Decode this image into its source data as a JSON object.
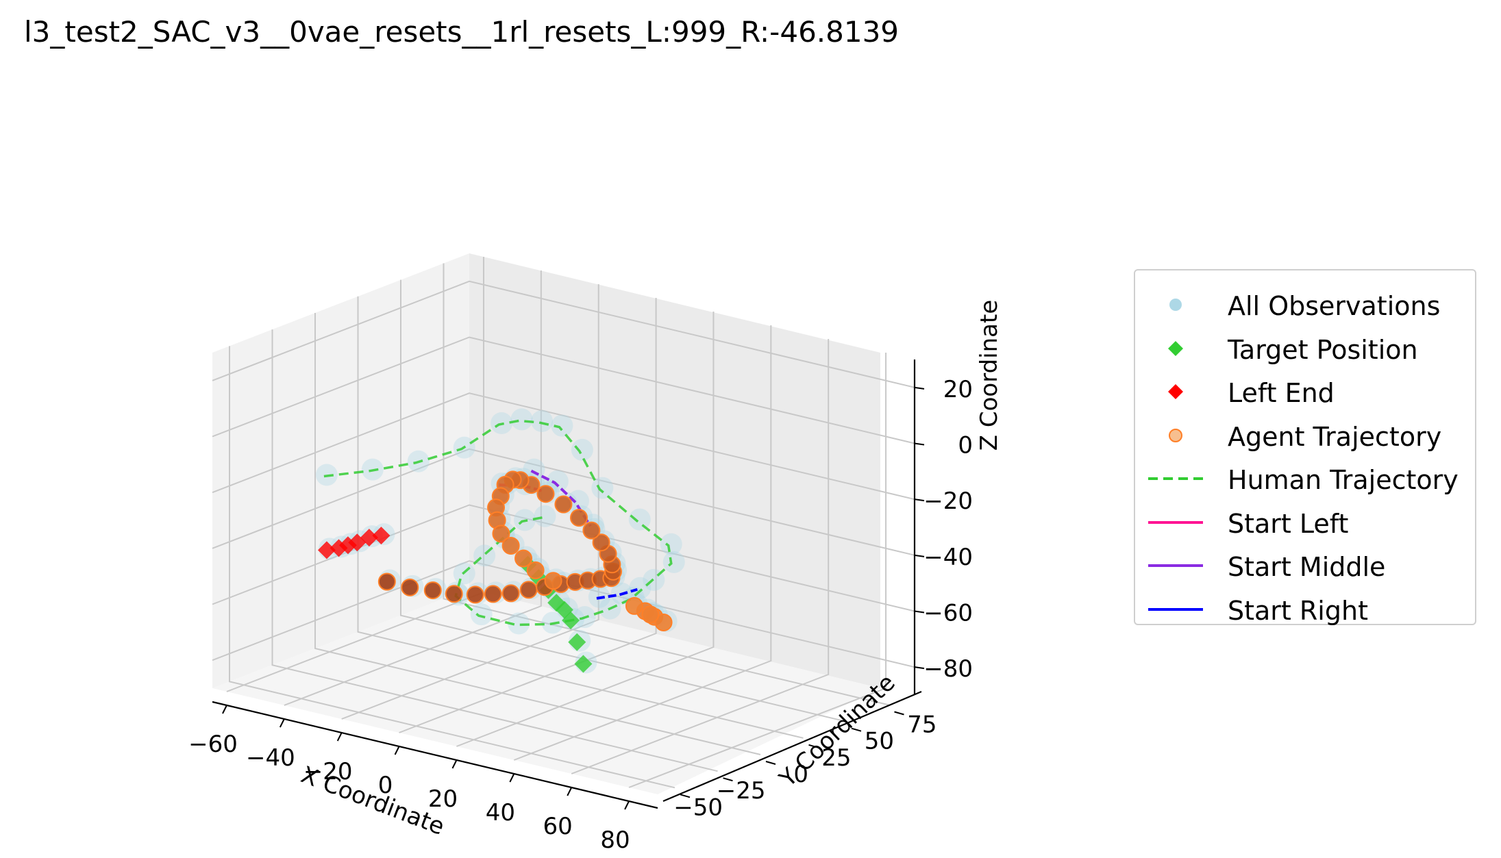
{
  "title": "l3_test2_SAC_v3__0vae_resets__1rl_resets_L:999_R:-46.8139",
  "chart_data": {
    "type": "scatter",
    "projection": "3d",
    "title": "l3_test2_SAC_v3__0vae_resets__1rl_resets_L:999_R:-46.8139",
    "xlabel": "X Coordinate",
    "ylabel": "Y Coordinate",
    "zlabel": "Z Coordinate",
    "xticks": [
      "−60",
      "−40",
      "−20",
      "0",
      "20",
      "40",
      "60",
      "80"
    ],
    "yticks": [
      "−50",
      "−25",
      "0",
      "25",
      "50",
      "75"
    ],
    "zticks": [
      "20",
      "0",
      "−20",
      "−40",
      "−60",
      "−80"
    ],
    "xlim": [
      -65,
      90
    ],
    "ylim": [
      -60,
      90
    ],
    "zlim": [
      -90,
      30
    ],
    "grid": true,
    "legend_position": "right",
    "colors": {
      "all_observations": "#add8e6",
      "target_position": "#32cd32",
      "left_end": "#ff0000",
      "agent_trajectory": "#f4a460",
      "agent_trajectory_edge": "#ff7f27",
      "human_trajectory": "#32cd32",
      "start_left": "#ff1493",
      "start_middle": "#8a2be2",
      "start_right": "#0000ff"
    },
    "legend": [
      {
        "label": "All Observations",
        "marker": "circle",
        "color": "#add8e6"
      },
      {
        "label": "Target Position",
        "marker": "diamond",
        "color": "#32cd32"
      },
      {
        "label": "Left End",
        "marker": "diamond",
        "color": "#ff0000"
      },
      {
        "label": "Agent Trajectory",
        "marker": "circle",
        "color": "#f4a460"
      },
      {
        "label": "Human Trajectory",
        "marker": "dashed-line",
        "color": "#32cd32"
      },
      {
        "label": "Start Left",
        "marker": "line",
        "color": "#ff1493"
      },
      {
        "label": "Start Middle",
        "marker": "line",
        "color": "#8a2be2"
      },
      {
        "label": "Start Right",
        "marker": "line",
        "color": "#0000ff"
      }
    ],
    "series": [
      {
        "name": "Agent Trajectory",
        "kind": "points",
        "points": [
          [
            -40,
            0,
            -60
          ],
          [
            -35,
            5,
            -62
          ],
          [
            -30,
            10,
            -63
          ],
          [
            -25,
            14,
            -64
          ],
          [
            -20,
            18,
            -64
          ],
          [
            -15,
            20,
            -63
          ],
          [
            -10,
            22,
            -62
          ],
          [
            -5,
            24,
            -60
          ],
          [
            0,
            25,
            -58
          ],
          [
            5,
            26,
            -56
          ],
          [
            10,
            26,
            -54
          ],
          [
            15,
            25,
            -52
          ],
          [
            20,
            24,
            -50
          ],
          [
            25,
            22,
            -48
          ],
          [
            28,
            18,
            -44
          ],
          [
            30,
            14,
            -40
          ],
          [
            31,
            10,
            -35
          ],
          [
            31,
            6,
            -30
          ],
          [
            30,
            2,
            -25
          ],
          [
            28,
            -2,
            -20
          ],
          [
            25,
            -6,
            -15
          ],
          [
            20,
            -8,
            -12
          ],
          [
            15,
            -8,
            -10
          ],
          [
            10,
            -6,
            -10
          ],
          [
            5,
            -2,
            -12
          ],
          [
            0,
            2,
            -16
          ],
          [
            -4,
            6,
            -22
          ],
          [
            -8,
            10,
            -28
          ],
          [
            -10,
            14,
            -34
          ],
          [
            -11,
            18,
            -40
          ],
          [
            -10,
            22,
            -45
          ],
          [
            -8,
            26,
            -50
          ],
          [
            -5,
            28,
            -54
          ],
          [
            0,
            30,
            -57
          ],
          [
            32,
            30,
            -60
          ],
          [
            34,
            32,
            -62
          ],
          [
            36,
            34,
            -64
          ],
          [
            35,
            28,
            -60
          ],
          [
            33,
            22,
            -56
          ]
        ]
      },
      {
        "name": "Human Trajectory",
        "kind": "dashed-line",
        "points": [
          [
            -50,
            -20,
            -20
          ],
          [
            -40,
            -10,
            -18
          ],
          [
            -30,
            0,
            -15
          ],
          [
            -20,
            10,
            -10
          ],
          [
            -10,
            15,
            0
          ],
          [
            0,
            10,
            5
          ],
          [
            10,
            5,
            8
          ],
          [
            20,
            0,
            10
          ],
          [
            30,
            -5,
            5
          ],
          [
            40,
            -10,
            -5
          ],
          [
            50,
            -5,
            -15
          ],
          [
            55,
            5,
            -25
          ],
          [
            50,
            15,
            -35
          ],
          [
            40,
            20,
            -45
          ],
          [
            30,
            25,
            -55
          ],
          [
            20,
            28,
            -62
          ],
          [
            10,
            30,
            -68
          ],
          [
            0,
            28,
            -72
          ],
          [
            -10,
            25,
            -74
          ],
          [
            -20,
            20,
            -72
          ],
          [
            -25,
            15,
            -65
          ],
          [
            -20,
            10,
            -55
          ],
          [
            -10,
            5,
            -45
          ],
          [
            0,
            0,
            -35
          ],
          [
            10,
            -5,
            -25
          ],
          [
            20,
            -10,
            -20
          ]
        ]
      },
      {
        "name": "Target Position",
        "kind": "diamonds",
        "points": [
          [
            12,
            -5,
            -40
          ],
          [
            14,
            -2,
            -45
          ],
          [
            15,
            2,
            -50
          ],
          [
            16,
            5,
            -55
          ],
          [
            17,
            8,
            -58
          ],
          [
            18,
            10,
            -62
          ],
          [
            19,
            12,
            -70
          ],
          [
            20,
            14,
            -78
          ]
        ]
      },
      {
        "name": "Left End",
        "kind": "diamonds",
        "points": [
          [
            -55,
            -10,
            -50
          ],
          [
            -52,
            -8,
            -49
          ],
          [
            -50,
            -6,
            -48
          ],
          [
            -48,
            -4,
            -47
          ],
          [
            -45,
            -2,
            -45
          ],
          [
            -42,
            0,
            -44
          ]
        ]
      },
      {
        "name": "Start Left",
        "kind": "line",
        "points": [
          [
            5,
            -10,
            -12
          ],
          [
            12,
            -8,
            -11
          ],
          [
            18,
            -6,
            -12
          ]
        ]
      },
      {
        "name": "Start Middle",
        "kind": "line",
        "points": [
          [
            15,
            -8,
            -5
          ],
          [
            22,
            -6,
            -8
          ],
          [
            28,
            -4,
            -14
          ],
          [
            32,
            -2,
            -22
          ]
        ]
      },
      {
        "name": "Start Right",
        "kind": "line",
        "points": [
          [
            30,
            5,
            -50
          ],
          [
            36,
            8,
            -48
          ],
          [
            40,
            12,
            -46
          ]
        ]
      }
    ]
  }
}
